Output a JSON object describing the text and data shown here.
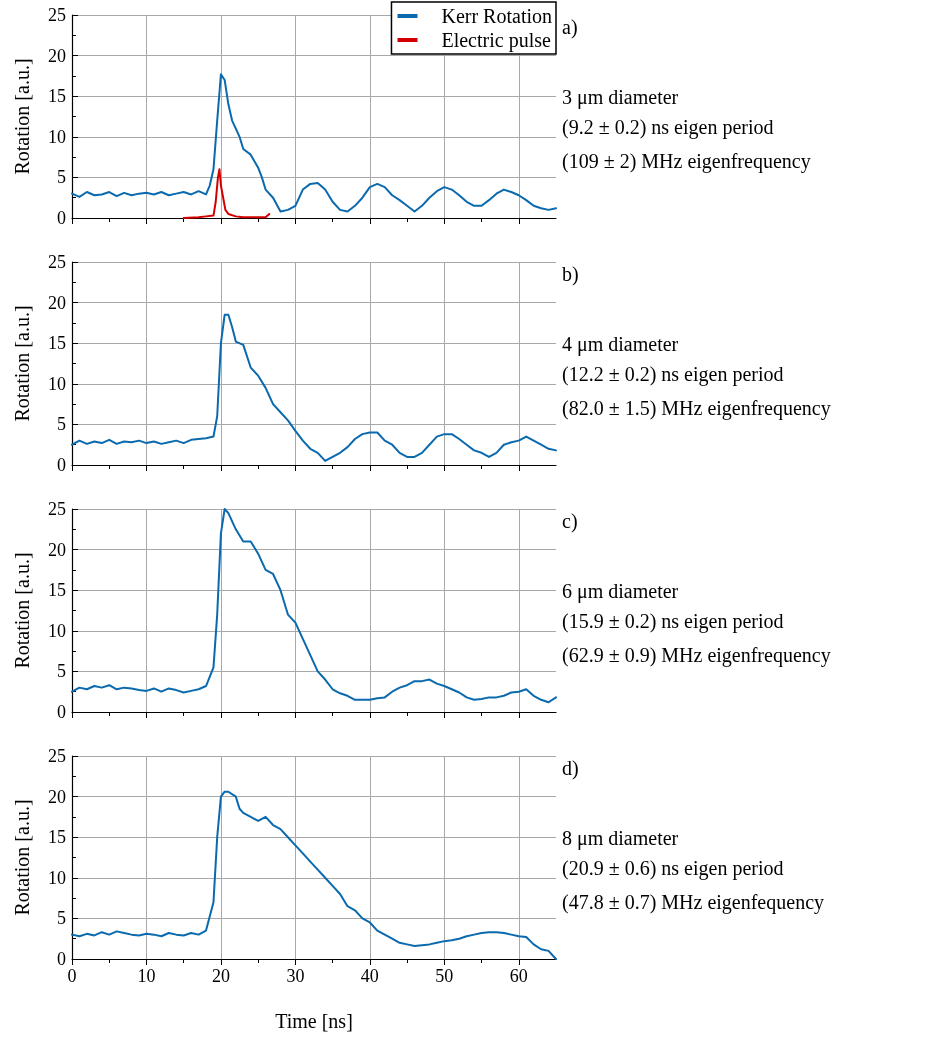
{
  "chart_data": [
    {
      "type": "line",
      "ylabel": "Rotation [a.u.]",
      "xlim": [
        0,
        65
      ],
      "xticks": [
        0,
        10,
        20,
        30,
        40,
        50,
        60
      ],
      "ylim": [
        0,
        25
      ],
      "yticks": [
        0,
        5,
        10,
        15,
        20,
        25
      ],
      "grid": true,
      "legend": "top right",
      "tick_labels": "y",
      "marker": "none",
      "line_style": "solid",
      "annotations": [
        "a)",
        "3 μm diameter",
        "(9.2 ± 0.2) ns eigen period",
        "(109 ± 2) MHz eigenfrequency"
      ],
      "series": [
        {
          "name": "Kerr Rotation",
          "color": "#0a6aad",
          "x": [
            0,
            1,
            2,
            3,
            4,
            5,
            6,
            7,
            8,
            9,
            10,
            11,
            12,
            13,
            14,
            15,
            16,
            17,
            18,
            18.5,
            19,
            19.5,
            20,
            20.5,
            21,
            21.5,
            22,
            22.5,
            23,
            24,
            25,
            25.5,
            26,
            27,
            28,
            29,
            30,
            31,
            32,
            33,
            34,
            35,
            36,
            37,
            38,
            39,
            40,
            41,
            42,
            43,
            44,
            45,
            46,
            47,
            48,
            49,
            50,
            51,
            52,
            53,
            54,
            55,
            56,
            57,
            58,
            59,
            60,
            61,
            62,
            63,
            64,
            65
          ],
          "values": [
            3.0,
            2.6,
            3.2,
            2.8,
            2.9,
            3.2,
            2.7,
            3.1,
            2.8,
            3.0,
            3.1,
            2.9,
            3.2,
            2.8,
            3.0,
            3.2,
            2.9,
            3.3,
            2.9,
            4,
            6,
            12,
            17.7,
            17,
            14,
            12,
            11,
            10,
            8.5,
            7.8,
            6.2,
            5,
            3.5,
            2.5,
            0.8,
            1.0,
            1.5,
            3.5,
            4.2,
            4.3,
            3.5,
            2,
            1,
            0.8,
            1.5,
            2.5,
            3.8,
            4.2,
            3.8,
            2.8,
            2.2,
            1.5,
            0.8,
            1.5,
            2.5,
            3.3,
            3.8,
            3.5,
            2.8,
            2.0,
            1.5,
            1.5,
            2.2,
            3.0,
            3.5,
            3.2,
            2.8,
            2.2,
            1.5,
            1.2,
            1.0,
            1.2
          ]
        },
        {
          "name": "Electric pulse",
          "color": "#d40000",
          "x": [
            15,
            17,
            18,
            19,
            19.3,
            19.6,
            19.8,
            20,
            20.3,
            20.6,
            21,
            22,
            23,
            26,
            26.5
          ],
          "values": [
            0,
            0.1,
            0.2,
            0.3,
            2,
            5,
            6,
            4,
            2.5,
            1,
            0.5,
            0.2,
            0.1,
            0.1,
            0.5
          ]
        }
      ]
    },
    {
      "type": "line",
      "ylabel": "Rotation [a.u.]",
      "xlim": [
        0,
        65
      ],
      "xticks": [
        0,
        10,
        20,
        30,
        40,
        50,
        60
      ],
      "ylim": [
        0,
        25
      ],
      "yticks": [
        0,
        5,
        10,
        15,
        20,
        25
      ],
      "grid": true,
      "tick_labels": "y",
      "marker": "none",
      "line_style": "solid",
      "annotations": [
        "b)",
        "4 μm diameter",
        "(12.2 ± 0.2) ns eigen period",
        "(82.0 ± 1.5) MHz eigenfrequency"
      ],
      "series": [
        {
          "color": "#0a6aad",
          "x": [
            0,
            1,
            2,
            3,
            4,
            5,
            6,
            7,
            8,
            9,
            10,
            11,
            12,
            13,
            14,
            15,
            16,
            17,
            18,
            19,
            19.5,
            20,
            20.5,
            21,
            21.5,
            22,
            23,
            24,
            25,
            26,
            27,
            28,
            29,
            30,
            31,
            32,
            33,
            34,
            35,
            36,
            37,
            38,
            39,
            40,
            41,
            42,
            43,
            44,
            45,
            46,
            47,
            48,
            49,
            50,
            51,
            52,
            53,
            54,
            55,
            56,
            57,
            58,
            59,
            60,
            61,
            62,
            63,
            64,
            65
          ],
          "values": [
            2.5,
            3.0,
            2.6,
            2.9,
            2.7,
            3.1,
            2.6,
            2.9,
            2.8,
            3.0,
            2.7,
            2.9,
            2.6,
            2.8,
            3.0,
            2.7,
            3.1,
            3.2,
            3.3,
            3.5,
            6,
            15,
            18.5,
            18.5,
            17,
            15.2,
            14.8,
            12,
            11,
            9.5,
            7.5,
            6.5,
            5.5,
            4.2,
            3.0,
            2.0,
            1.5,
            0.5,
            1.0,
            1.5,
            2.2,
            3.2,
            3.8,
            4.0,
            4.0,
            3.0,
            2.5,
            1.5,
            1.0,
            1.0,
            1.5,
            2.5,
            3.5,
            3.8,
            3.8,
            3.2,
            2.5,
            1.8,
            1.5,
            1.0,
            1.5,
            2.5,
            2.8,
            3.0,
            3.5,
            3.0,
            2.5,
            2.0,
            1.8
          ]
        }
      ]
    },
    {
      "type": "line",
      "ylabel": "Rotation [a.u.]",
      "xlim": [
        0,
        65
      ],
      "xticks": [
        0,
        10,
        20,
        30,
        40,
        50,
        60
      ],
      "ylim": [
        0,
        25
      ],
      "yticks": [
        0,
        5,
        10,
        15,
        20,
        25
      ],
      "grid": true,
      "tick_labels": "y",
      "marker": "none",
      "line_style": "solid",
      "annotations": [
        "c)",
        "6 μm diameter",
        "(15.9 ± 0.2) ns eigen period",
        "(62.9 ± 0.9) MHz eigenfrequency"
      ],
      "series": [
        {
          "color": "#0a6aad",
          "x": [
            0,
            1,
            2,
            3,
            4,
            5,
            6,
            7,
            8,
            9,
            10,
            11,
            12,
            13,
            14,
            15,
            16,
            17,
            18,
            19,
            19.5,
            20,
            20.5,
            21,
            22,
            23,
            24,
            25,
            26,
            27,
            28,
            29,
            30,
            31,
            32,
            33,
            34,
            35,
            36,
            37,
            38,
            39,
            40,
            41,
            42,
            43,
            44,
            45,
            46,
            47,
            48,
            49,
            50,
            51,
            52,
            53,
            54,
            55,
            56,
            57,
            58,
            59,
            60,
            61,
            62,
            63,
            64,
            65
          ],
          "values": [
            2.5,
            3.0,
            2.8,
            3.2,
            3.0,
            3.3,
            2.8,
            3.0,
            2.9,
            2.7,
            2.6,
            2.9,
            2.5,
            2.9,
            2.7,
            2.4,
            2.6,
            2.8,
            3.2,
            5.5,
            12,
            22,
            25,
            24.5,
            22.5,
            21,
            21,
            19.5,
            17.5,
            17,
            15,
            12,
            11,
            9,
            7,
            5,
            4,
            2.8,
            2.3,
            2,
            1.5,
            1.5,
            1.5,
            1.7,
            1.8,
            2.5,
            3,
            3.3,
            3.8,
            3.8,
            4.0,
            3.5,
            3.2,
            2.8,
            2.4,
            1.8,
            1.5,
            1.6,
            1.8,
            1.8,
            2.0,
            2.4,
            2.5,
            2.8,
            2.0,
            1.5,
            1.2,
            1.8
          ]
        }
      ]
    },
    {
      "type": "line",
      "xlabel": "Time [ns]",
      "ylabel": "Rotation [a.u.]",
      "xlim": [
        0,
        65
      ],
      "xticks": [
        0,
        10,
        20,
        30,
        40,
        50,
        60
      ],
      "ylim": [
        0,
        25
      ],
      "yticks": [
        0,
        5,
        10,
        15,
        20,
        25
      ],
      "grid": true,
      "marker": "none",
      "line_style": "solid",
      "annotations": [
        "d)",
        "8 μm diameter",
        "(20.9 ± 0.6) ns eigen period",
        "(47.8 ± 0.7) MHz eigenfequency"
      ],
      "series": [
        {
          "color": "#0a6aad",
          "x": [
            0,
            1,
            2,
            3,
            4,
            5,
            6,
            7,
            8,
            9,
            10,
            11,
            12,
            13,
            14,
            15,
            16,
            17,
            18,
            19,
            19.5,
            20,
            20.5,
            21,
            22,
            22.5,
            23,
            24,
            25,
            26,
            27,
            28,
            29,
            30,
            31,
            32,
            33,
            34,
            35,
            36,
            37,
            38,
            39,
            40,
            41,
            42,
            43,
            44,
            45,
            46,
            47,
            48,
            49,
            50,
            51,
            52,
            53,
            54,
            55,
            56,
            57,
            58,
            59,
            60,
            61,
            62,
            63,
            64,
            65
          ],
          "values": [
            3.0,
            2.8,
            3.1,
            2.9,
            3.3,
            3.0,
            3.4,
            3.2,
            3.0,
            2.9,
            3.1,
            3.0,
            2.8,
            3.2,
            3.0,
            2.9,
            3.2,
            3.0,
            3.5,
            7,
            15,
            20,
            20.6,
            20.6,
            20,
            18.5,
            18,
            17.5,
            17,
            17.5,
            16.5,
            16,
            15,
            14,
            13,
            12,
            11,
            10,
            9,
            8,
            6.5,
            6,
            5,
            4.5,
            3.5,
            3,
            2.5,
            2,
            1.8,
            1.6,
            1.7,
            1.8,
            2.0,
            2.2,
            2.3,
            2.5,
            2.8,
            3.0,
            3.2,
            3.3,
            3.3,
            3.2,
            3.0,
            2.8,
            2.7,
            1.8,
            1.2,
            1.0,
            0
          ]
        }
      ]
    }
  ]
}
